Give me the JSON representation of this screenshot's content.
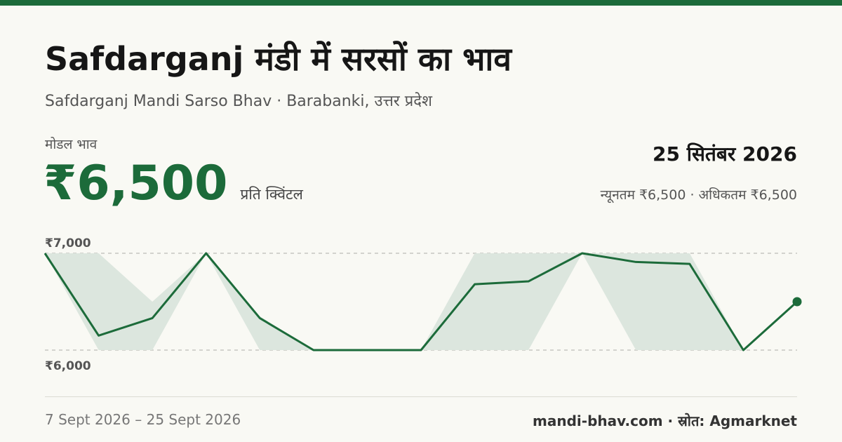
{
  "header": {
    "title": "Safdarganj मंडी में सरसों का भाव",
    "subtitle": "Safdarganj Mandi Sarso Bhav · Barabanki, उत्तर प्रदेश"
  },
  "summary": {
    "modal_label": "मोडल भाव",
    "modal_price": "₹6,500",
    "unit": "प्रति क्विंटल",
    "date": "25 सितंबर 2026",
    "min_max": "न्यूनतम ₹6,500 · अधिकतम ₹6,500"
  },
  "footer": {
    "date_range": "7 Sept 2026 – 25 Sept 2026",
    "source": "mandi-bhav.com · स्रोत: Agmarknet"
  },
  "colors": {
    "accent": "#1c6b3a",
    "band": "#dce6de",
    "grid": "#bdbdb6"
  },
  "chart_data": {
    "type": "line",
    "ylim": [
      6000,
      7000
    ],
    "y_tick_labels": [
      "₹7,000",
      "₹6,000"
    ],
    "y_ticks": [
      7000,
      6000
    ],
    "series": [
      {
        "values": [
          7000,
          6150,
          6330,
          7000,
          6330,
          6000,
          6000,
          6000,
          6680,
          6710,
          7000,
          6910,
          6890,
          6000,
          6500
        ]
      }
    ],
    "band_min": [
      7000,
      6000,
      6000,
      7000,
      6000,
      6000,
      6000,
      6000,
      6000,
      6000,
      7000,
      6000,
      6000,
      6000,
      6500
    ],
    "band_max": [
      7000,
      7000,
      6500,
      7000,
      6350,
      6000,
      6000,
      6000,
      7000,
      7000,
      7000,
      7000,
      7000,
      6000,
      6500
    ]
  }
}
